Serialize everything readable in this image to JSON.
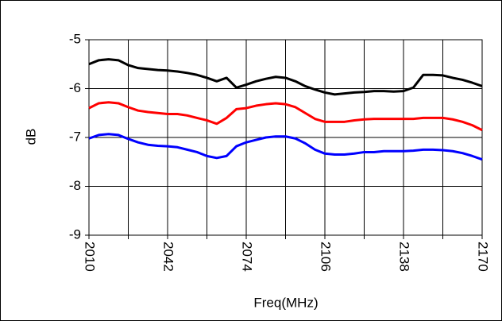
{
  "chart_data": {
    "type": "line",
    "xlabel": "Freq(MHz)",
    "ylabel": "dB",
    "xlim": [
      2010,
      2170
    ],
    "ylim": [
      -9,
      -5
    ],
    "xticks": [
      2010,
      {
        "value": 2026,
        "label": null
      },
      2042,
      {
        "value": 2058,
        "label": null
      },
      2074,
      {
        "value": 2090,
        "label": null
      },
      2106,
      {
        "value": 2122,
        "label": null
      },
      2138,
      {
        "value": 2154,
        "label": null
      },
      2170
    ],
    "yticks": [
      -5,
      -6,
      -7,
      -8,
      -9
    ],
    "grid": true,
    "x": [
      2010,
      2014,
      2018,
      2022,
      2026,
      2030,
      2034,
      2038,
      2042,
      2046,
      2050,
      2054,
      2058,
      2062,
      2066,
      2070,
      2074,
      2078,
      2082,
      2086,
      2090,
      2094,
      2098,
      2102,
      2106,
      2110,
      2114,
      2118,
      2122,
      2126,
      2130,
      2134,
      2138,
      2142,
      2146,
      2150,
      2154,
      2158,
      2162,
      2166,
      2170
    ],
    "series": [
      {
        "color": "#000000",
        "values": [
          -5.5,
          -5.42,
          -5.4,
          -5.42,
          -5.52,
          -5.58,
          -5.6,
          -5.62,
          -5.63,
          -5.65,
          -5.68,
          -5.72,
          -5.78,
          -5.85,
          -5.78,
          -5.98,
          -5.92,
          -5.85,
          -5.8,
          -5.76,
          -5.78,
          -5.85,
          -5.95,
          -6.02,
          -6.08,
          -6.12,
          -6.1,
          -6.08,
          -6.07,
          -6.05,
          -6.05,
          -6.06,
          -6.05,
          -5.98,
          -5.72,
          -5.72,
          -5.73,
          -5.78,
          -5.82,
          -5.88,
          -5.95
        ]
      },
      {
        "color": "#ff0000",
        "values": [
          -6.4,
          -6.3,
          -6.28,
          -6.3,
          -6.38,
          -6.45,
          -6.48,
          -6.5,
          -6.52,
          -6.52,
          -6.55,
          -6.6,
          -6.65,
          -6.72,
          -6.6,
          -6.42,
          -6.4,
          -6.35,
          -6.32,
          -6.3,
          -6.32,
          -6.38,
          -6.5,
          -6.62,
          -6.68,
          -6.68,
          -6.68,
          -6.65,
          -6.63,
          -6.62,
          -6.62,
          -6.62,
          -6.62,
          -6.62,
          -6.6,
          -6.6,
          -6.6,
          -6.63,
          -6.68,
          -6.75,
          -6.85
        ]
      },
      {
        "color": "#0000ff",
        "values": [
          -7.02,
          -6.95,
          -6.93,
          -6.95,
          -7.03,
          -7.1,
          -7.15,
          -7.17,
          -7.18,
          -7.2,
          -7.25,
          -7.3,
          -7.38,
          -7.42,
          -7.38,
          -7.18,
          -7.1,
          -7.05,
          -7.0,
          -6.98,
          -6.98,
          -7.02,
          -7.12,
          -7.25,
          -7.33,
          -7.35,
          -7.35,
          -7.33,
          -7.3,
          -7.3,
          -7.28,
          -7.28,
          -7.28,
          -7.27,
          -7.25,
          -7.25,
          -7.26,
          -7.28,
          -7.32,
          -7.38,
          -7.45
        ]
      }
    ]
  }
}
